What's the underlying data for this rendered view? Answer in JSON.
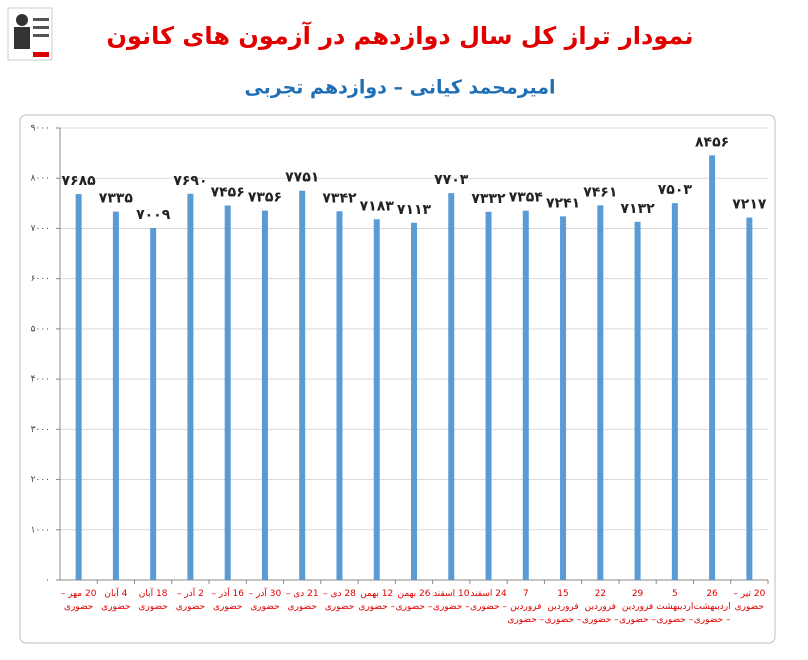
{
  "chart_data": {
    "type": "bar",
    "title": "نمودار تراز کل سال دوازدهم در آزمون های کانون",
    "subtitle": "امیرمحمد کیانی – دوازدهم تجربی",
    "categories": [
      "20 مهر – حضوری",
      "4 آبان حضوری",
      "18 آبان حضوری",
      "2 آذر – حضوری",
      "16 آذر – حضوری",
      "30 آذر – حضوری",
      "21 دی – حضوری",
      "28 دی – حضوری",
      "12 بهمن – حضوری",
      "26 بهمن – حضوری",
      "10 اسفند – حضوری",
      "24 اسفند – حضوری",
      "7 فروردین – حضوری",
      "15 فروردین – حضوری",
      "22 فروردین – حضوری",
      "29 فروردین – حضوری",
      "5 اردیبهشت – حضوری",
      "26 اردیبهشت – حضوری",
      "20 تیر – حضوری"
    ],
    "values": [
      7685,
      7335,
      7009,
      7690,
      7456,
      7356,
      7751,
      7342,
      7183,
      7113,
      7703,
      7332,
      7354,
      7241,
      7461,
      7132,
      7503,
      8456,
      7217
    ],
    "value_labels": [
      "۷۶۸۵",
      "۷۳۳۵",
      "۷۰۰۹",
      "۷۶۹۰",
      "۷۴۵۶",
      "۷۳۵۶",
      "۷۷۵۱",
      "۷۳۴۲",
      "۷۱۸۳",
      "۷۱۱۳",
      "۷۷۰۳",
      "۷۳۳۲",
      "۷۳۵۴",
      "۷۲۴۱",
      "۷۴۶۱",
      "۷۱۳۲",
      "۷۵۰۳",
      "۸۴۵۶",
      "۷۲۱۷"
    ],
    "color": "#5b9bd5",
    "ylim": [
      0,
      9000
    ],
    "yticks": [
      {
        "value": 0,
        "label": "۰"
      },
      {
        "value": 1000,
        "label": "۱۰۰۰"
      },
      {
        "value": 2000,
        "label": "۲۰۰۰"
      },
      {
        "value": 3000,
        "label": "۳۰۰۰"
      },
      {
        "value": 4000,
        "label": "۴۰۰۰"
      },
      {
        "value": 5000,
        "label": "۵۰۰۰"
      },
      {
        "value": 6000,
        "label": "۶۰۰۰"
      },
      {
        "value": 7000,
        "label": "۷۰۰۰"
      },
      {
        "value": 8000,
        "label": "۸۰۰۰"
      },
      {
        "value": 9000,
        "label": "۹۰۰۰"
      }
    ],
    "grid": true
  }
}
